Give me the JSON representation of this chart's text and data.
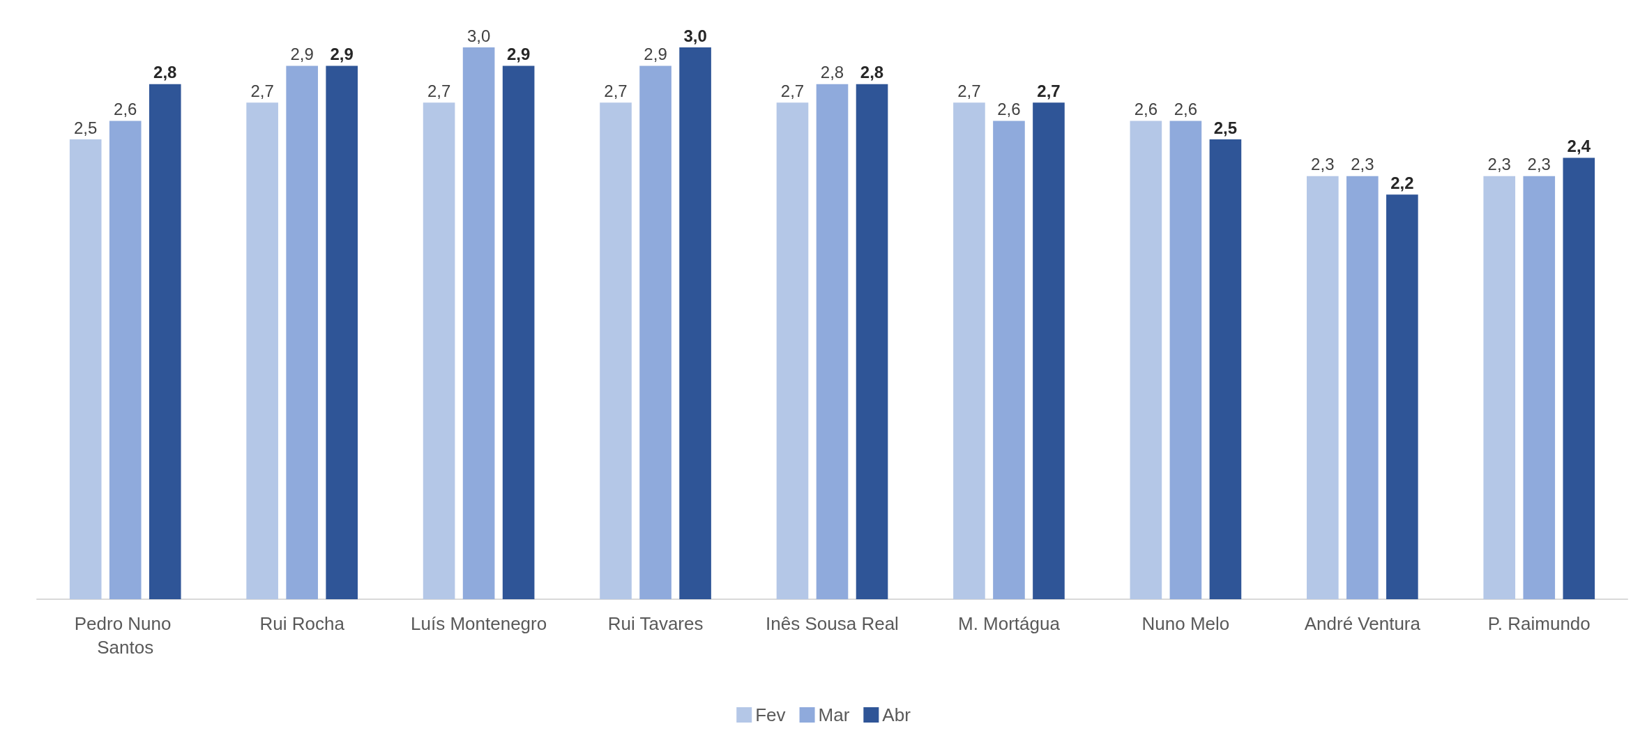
{
  "chart_data": {
    "type": "bar",
    "categories": [
      "Pedro Nuno Santos",
      "Rui Rocha",
      "Luís Montenegro",
      "Rui Tavares",
      "Inês Sousa Real",
      "M. Mortágua",
      "Nuno Melo",
      "André Ventura",
      "P. Raimundo"
    ],
    "series": [
      {
        "name": "Fev",
        "color": "#b4c7e7",
        "values": [
          2.5,
          2.7,
          2.7,
          2.7,
          2.7,
          2.7,
          2.6,
          2.3,
          2.3
        ],
        "value_labels": [
          "2,5",
          "2,7",
          "2,7",
          "2,7",
          "2,7",
          "2,7",
          "2,6",
          "2,3",
          "2,3"
        ]
      },
      {
        "name": "Mar",
        "color": "#8faadc",
        "values": [
          2.6,
          2.9,
          3.0,
          2.9,
          2.8,
          2.6,
          2.6,
          2.3,
          2.3
        ],
        "value_labels": [
          "2,6",
          "2,9",
          "3,0",
          "2,9",
          "2,8",
          "2,6",
          "2,6",
          "2,3",
          "2,3"
        ]
      },
      {
        "name": "Abr",
        "color": "#2f5597",
        "values": [
          2.8,
          2.9,
          2.9,
          3.0,
          2.8,
          2.7,
          2.5,
          2.2,
          2.4
        ],
        "value_labels": [
          "2,8",
          "2,9",
          "2,9",
          "3,0",
          "2,8",
          "2,7",
          "2,5",
          "2,2",
          "2,4"
        ]
      }
    ],
    "legend": "bottom",
    "grid": false
  }
}
